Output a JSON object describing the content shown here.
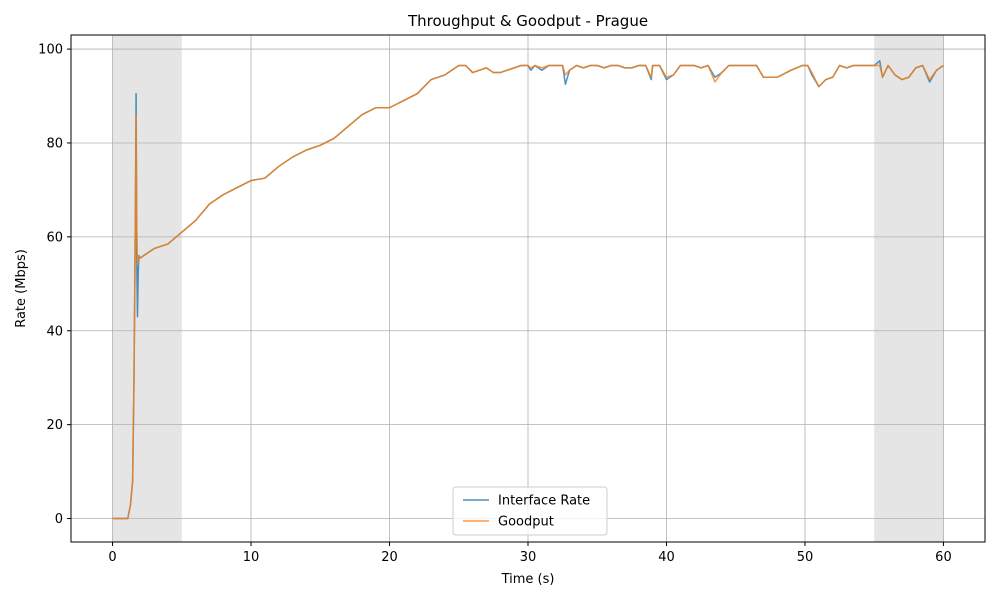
{
  "chart_data": {
    "type": "line",
    "title": "Throughput & Goodput - Prague",
    "xlabel": "Time (s)",
    "ylabel": "Rate (Mbps)",
    "xlim": [
      -3,
      63
    ],
    "ylim": [
      -5,
      103
    ],
    "xticks": [
      0,
      10,
      20,
      30,
      40,
      50,
      60
    ],
    "yticks": [
      0,
      20,
      40,
      60,
      80,
      100
    ],
    "grid": true,
    "legend_position": "lower center",
    "shaded_regions": [
      [
        0,
        5
      ],
      [
        55,
        60
      ]
    ],
    "series": [
      {
        "name": "Interface Rate",
        "color": "#1f77b4",
        "x": [
          0,
          1,
          1.1,
          1.3,
          1.45,
          1.55,
          1.65,
          1.7,
          1.75,
          1.8,
          1.85,
          1.9,
          2.0,
          2.5,
          3,
          4,
          5,
          6,
          7,
          8,
          9,
          10,
          11,
          12,
          13,
          14,
          15,
          16,
          17,
          18,
          19,
          20,
          21,
          22,
          23,
          24,
          25,
          25.5,
          26,
          26.5,
          27,
          27.5,
          28,
          28.5,
          29,
          29.5,
          30,
          30.2,
          30.5,
          31,
          31.5,
          32,
          32.5,
          32.7,
          33,
          33.5,
          34,
          34.5,
          35,
          35.5,
          36,
          36.5,
          37,
          37.5,
          38,
          38.5,
          38.9,
          39,
          39.5,
          40,
          40.5,
          41,
          41.5,
          42,
          42.5,
          43,
          43.5,
          44,
          44.5,
          45,
          46,
          46.5,
          47,
          48,
          49,
          49.8,
          50.2,
          50.5,
          51,
          51.5,
          52,
          52.5,
          53,
          53.5,
          54,
          55,
          55.4,
          55.6,
          56,
          56.5,
          57,
          57.5,
          58,
          58.5,
          59,
          59.5,
          60
        ],
        "values": [
          0,
          0,
          0,
          3,
          8,
          30,
          65,
          90.5,
          55,
          43,
          52,
          56,
          55.5,
          56.5,
          57.5,
          58.5,
          61,
          63.5,
          67,
          69,
          70.5,
          72,
          72.5,
          75,
          77,
          78.5,
          79.5,
          81,
          83.5,
          86,
          87.5,
          87.5,
          89,
          90.5,
          93.5,
          94.5,
          96.5,
          96.5,
          95,
          95.5,
          96,
          95,
          95,
          95.5,
          96,
          96.5,
          96.5,
          95.5,
          96.5,
          95.5,
          96.5,
          96.5,
          96.5,
          92.5,
          95.5,
          96.5,
          96,
          96.5,
          96.5,
          96,
          96.5,
          96.5,
          96,
          96,
          96.5,
          96.5,
          93.5,
          96.5,
          96.5,
          93.5,
          94.5,
          96.5,
          96.5,
          96.5,
          96,
          96.5,
          94,
          95,
          96.5,
          96.5,
          96.5,
          96.5,
          94,
          94,
          95.5,
          96.5,
          96.5,
          94.5,
          92,
          93.5,
          94,
          96.5,
          96,
          96.5,
          96.5,
          96.5,
          97.5,
          94,
          96.5,
          94.5,
          93.5,
          94,
          96,
          96.5,
          93,
          95.5,
          96.5
        ]
      },
      {
        "name": "Goodput",
        "color": "#ff7f0e",
        "x": [
          0,
          1,
          1.1,
          1.3,
          1.45,
          1.55,
          1.65,
          1.7,
          1.75,
          1.8,
          1.85,
          1.9,
          2.0,
          2.5,
          3,
          4,
          5,
          6,
          7,
          8,
          9,
          10,
          11,
          12,
          13,
          14,
          15,
          16,
          17,
          18,
          19,
          20,
          21,
          22,
          23,
          24,
          25,
          25.5,
          26,
          26.5,
          27,
          27.5,
          28,
          28.5,
          29,
          29.5,
          30,
          30.2,
          30.5,
          31,
          31.5,
          32,
          32.5,
          32.7,
          33,
          33.5,
          34,
          34.5,
          35,
          35.5,
          36,
          36.5,
          37,
          37.5,
          38,
          38.5,
          38.9,
          39,
          39.5,
          40,
          40.5,
          41,
          41.5,
          42,
          42.5,
          43,
          43.5,
          44,
          44.5,
          45,
          46,
          46.5,
          47,
          48,
          49,
          49.8,
          50.2,
          50.5,
          51,
          51.5,
          52,
          52.5,
          53,
          53.5,
          54,
          55,
          55.4,
          55.6,
          56,
          56.5,
          57,
          57.5,
          58,
          58.5,
          59,
          59.5,
          60
        ],
        "values": [
          0,
          0,
          0,
          3,
          8,
          30,
          65,
          86,
          62,
          54,
          55.5,
          56,
          55.5,
          56.5,
          57.5,
          58.5,
          61,
          63.5,
          67,
          69,
          70.5,
          72,
          72.5,
          75,
          77,
          78.5,
          79.5,
          81,
          83.5,
          86,
          87.5,
          87.5,
          89,
          90.5,
          93.5,
          94.5,
          96.5,
          96.5,
          95,
          95.5,
          96,
          95,
          95,
          95.5,
          96,
          96.5,
          96.5,
          96,
          96.5,
          96,
          96.5,
          96.5,
          96.5,
          94.5,
          95.5,
          96.5,
          96,
          96.5,
          96.5,
          96,
          96.5,
          96.5,
          96,
          96,
          96.5,
          96.5,
          94,
          96.5,
          96.5,
          94,
          94.5,
          96.5,
          96.5,
          96.5,
          96,
          96.5,
          93,
          95,
          96.5,
          96.5,
          96.5,
          96.5,
          94,
          94,
          95.5,
          96.5,
          96.5,
          95,
          92,
          93.5,
          94,
          96.5,
          96,
          96.5,
          96.5,
          96.5,
          96.5,
          94,
          96.5,
          94.5,
          93.5,
          94,
          96,
          96.5,
          93.5,
          95.5,
          96.5
        ]
      }
    ]
  }
}
